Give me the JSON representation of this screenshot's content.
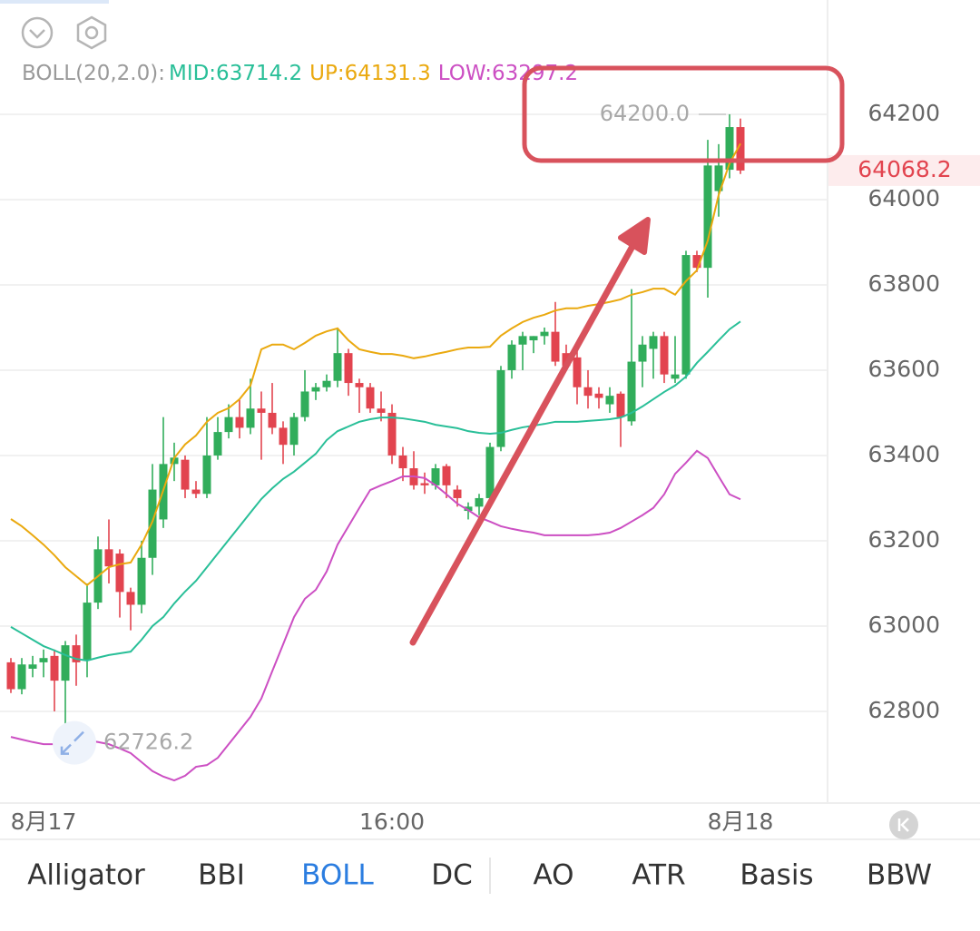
{
  "chart_data": {
    "type": "candlestick",
    "indicator_label": "BOLL(20,2.0):",
    "categories": [
      null,
      null,
      null,
      "8月17",
      null,
      null,
      null,
      null,
      null,
      null,
      null,
      null,
      null,
      null,
      null,
      null,
      null,
      null,
      null,
      null,
      null,
      null,
      null,
      null,
      null,
      null,
      null,
      null,
      null,
      null,
      null,
      null,
      null,
      null,
      null,
      "16:00",
      null,
      null,
      null,
      null,
      null,
      null,
      null,
      null,
      null,
      null,
      null,
      null,
      null,
      null,
      null,
      null,
      null,
      null,
      null,
      null,
      null,
      null,
      null,
      null,
      null,
      null,
      null,
      null,
      null,
      null,
      null,
      "8月18"
    ],
    "open": [
      62915,
      62852,
      62900,
      62915,
      62930,
      62872,
      62955,
      62920,
      63055,
      63180,
      63170,
      63080,
      63050,
      63160,
      63250,
      63380,
      63390,
      63320,
      63310,
      63400,
      63455,
      63490,
      63465,
      63510,
      63500,
      63465,
      63425,
      63490,
      63550,
      63560,
      63575,
      63640,
      63570,
      63560,
      63510,
      63500,
      63400,
      63370,
      63335,
      63330,
      63375,
      63320,
      63270,
      63280,
      63300,
      63420,
      63600,
      63660,
      63670,
      63680,
      63690,
      63640,
      63630,
      63560,
      63545,
      63520,
      63545,
      63480,
      63620,
      63650,
      63680,
      63580,
      63590,
      63870,
      63840,
      64020,
      64070,
      64170
    ],
    "high": [
      62925,
      62925,
      62930,
      62945,
      62945,
      62965,
      62980,
      63100,
      63210,
      63250,
      63180,
      63090,
      63200,
      63380,
      63490,
      63430,
      63400,
      63340,
      63490,
      63490,
      63520,
      63530,
      63580,
      63550,
      63570,
      63480,
      63500,
      63600,
      63570,
      63590,
      63700,
      63650,
      63580,
      63570,
      63550,
      63520,
      63420,
      63410,
      63360,
      63380,
      63380,
      63330,
      63290,
      63310,
      63430,
      63610,
      63670,
      63690,
      63680,
      63700,
      63760,
      63660,
      63650,
      63600,
      63560,
      63560,
      63550,
      63790,
      63680,
      63690,
      63690,
      63680,
      63880,
      63880,
      64140,
      64130,
      64200,
      64190
    ],
    "low": [
      62843,
      62840,
      62880,
      62880,
      62800,
      62726.2,
      62860,
      62880,
      63040,
      63100,
      63020,
      62990,
      63030,
      63120,
      63230,
      63340,
      63300,
      63300,
      63300,
      63390,
      63440,
      63440,
      63450,
      63390,
      63450,
      63380,
      63400,
      63480,
      63530,
      63550,
      63560,
      63540,
      63500,
      63500,
      63480,
      63380,
      63340,
      63320,
      63310,
      63320,
      63300,
      63280,
      63250,
      63260,
      63290,
      63410,
      63580,
      63600,
      63640,
      63660,
      63610,
      63600,
      63520,
      63510,
      63510,
      63500,
      63420,
      63470,
      63560,
      63580,
      63570,
      63570,
      63580,
      63830,
      63770,
      63960,
      64050,
      64060
    ],
    "close": [
      62852,
      62910,
      62910,
      62925,
      62872,
      62955,
      62915,
      63055,
      63180,
      63140,
      63080,
      63050,
      63160,
      63320,
      63380,
      63395,
      63320,
      63310,
      63400,
      63455,
      63490,
      63465,
      63510,
      63500,
      63465,
      63425,
      63490,
      63550,
      63560,
      63575,
      63640,
      63570,
      63560,
      63510,
      63500,
      63400,
      63370,
      63330,
      63330,
      63370,
      63330,
      63300,
      63280,
      63300,
      63420,
      63600,
      63660,
      63680,
      63680,
      63690,
      63620,
      63610,
      63560,
      63540,
      63535,
      63540,
      63490,
      63620,
      63660,
      63680,
      63590,
      63590,
      63870,
      63840,
      64080,
      64080,
      64170,
      64068.2
    ],
    "up_color": "#31ad5b",
    "down_color": "#e2444f",
    "series": [
      {
        "name": "MID:63714.2",
        "color": "#29bf98",
        "values": [
          62998,
          62983,
          62968,
          62953,
          62943,
          62932,
          62923,
          62919,
          62926,
          62932,
          62936,
          62940,
          62968,
          63000,
          63021,
          63053,
          63081,
          63106,
          63138,
          63170,
          63202,
          63234,
          63266,
          63298,
          63323,
          63345,
          63362,
          63383,
          63404,
          63436,
          63457,
          63468,
          63479,
          63485,
          63489,
          63489,
          63487,
          63483,
          63479,
          63472,
          63468,
          63464,
          63457,
          63453,
          63451,
          63453,
          63460,
          63466,
          63470,
          63474,
          63479,
          63479,
          63479,
          63481,
          63483,
          63485,
          63489,
          63500,
          63515,
          63532,
          63549,
          63564,
          63585,
          63617,
          63643,
          63670,
          63696,
          63714.2
        ]
      },
      {
        "name": "UP:64131.3",
        "color": "#eaa90f",
        "values": [
          63251,
          63234,
          63213,
          63191,
          63166,
          63138,
          63117,
          63096,
          63117,
          63138,
          63145,
          63149,
          63191,
          63245,
          63319,
          63394,
          63426,
          63447,
          63479,
          63500,
          63511,
          63532,
          63564,
          63649,
          63660,
          63660,
          63649,
          63664,
          63681,
          63691,
          63698,
          63670,
          63649,
          63643,
          63638,
          63638,
          63634,
          63628,
          63632,
          63638,
          63643,
          63649,
          63653,
          63653,
          63655,
          63681,
          63698,
          63713,
          63723,
          63730,
          63740,
          63745,
          63745,
          63751,
          63755,
          63760,
          63766,
          63777,
          63783,
          63791,
          63791,
          63777,
          63809,
          63834,
          63904,
          64011,
          64085,
          64131.3
        ]
      },
      {
        "name": "LOW:63297.2",
        "color": "#cc4fc3",
        "values": [
          62740,
          62734,
          62728,
          62723,
          62723,
          62723,
          62728,
          62732,
          62728,
          62723,
          62713,
          62702,
          62681,
          62660,
          62647,
          62638,
          62649,
          62670,
          62674,
          62691,
          62723,
          62755,
          62787,
          62830,
          62894,
          62957,
          63021,
          63064,
          63085,
          63128,
          63191,
          63234,
          63277,
          63319,
          63330,
          63340,
          63351,
          63351,
          63347,
          63330,
          63309,
          63287,
          63272,
          63255,
          63245,
          63234,
          63228,
          63223,
          63219,
          63213,
          63213,
          63213,
          63213,
          63213,
          63215,
          63219,
          63230,
          63245,
          63260,
          63277,
          63309,
          63357,
          63383,
          63411,
          63394,
          63351,
          63309,
          63297.2
        ]
      }
    ],
    "ylim": [
      62585,
      64468
    ],
    "yticks": [
      62800,
      63000,
      63200,
      63400,
      63600,
      63800,
      64000,
      64200
    ],
    "grid": true,
    "last_price": 64068.2,
    "annotations": [
      {
        "value": 64200,
        "label": "64200.0"
      },
      {
        "value": 62726.2,
        "label": "62726.2"
      }
    ]
  },
  "tabs": {
    "items": [
      "Alligator",
      "BBI",
      "BOLL",
      "DC",
      "AO",
      "ATR",
      "Basis",
      "BBW"
    ],
    "active": 2
  }
}
